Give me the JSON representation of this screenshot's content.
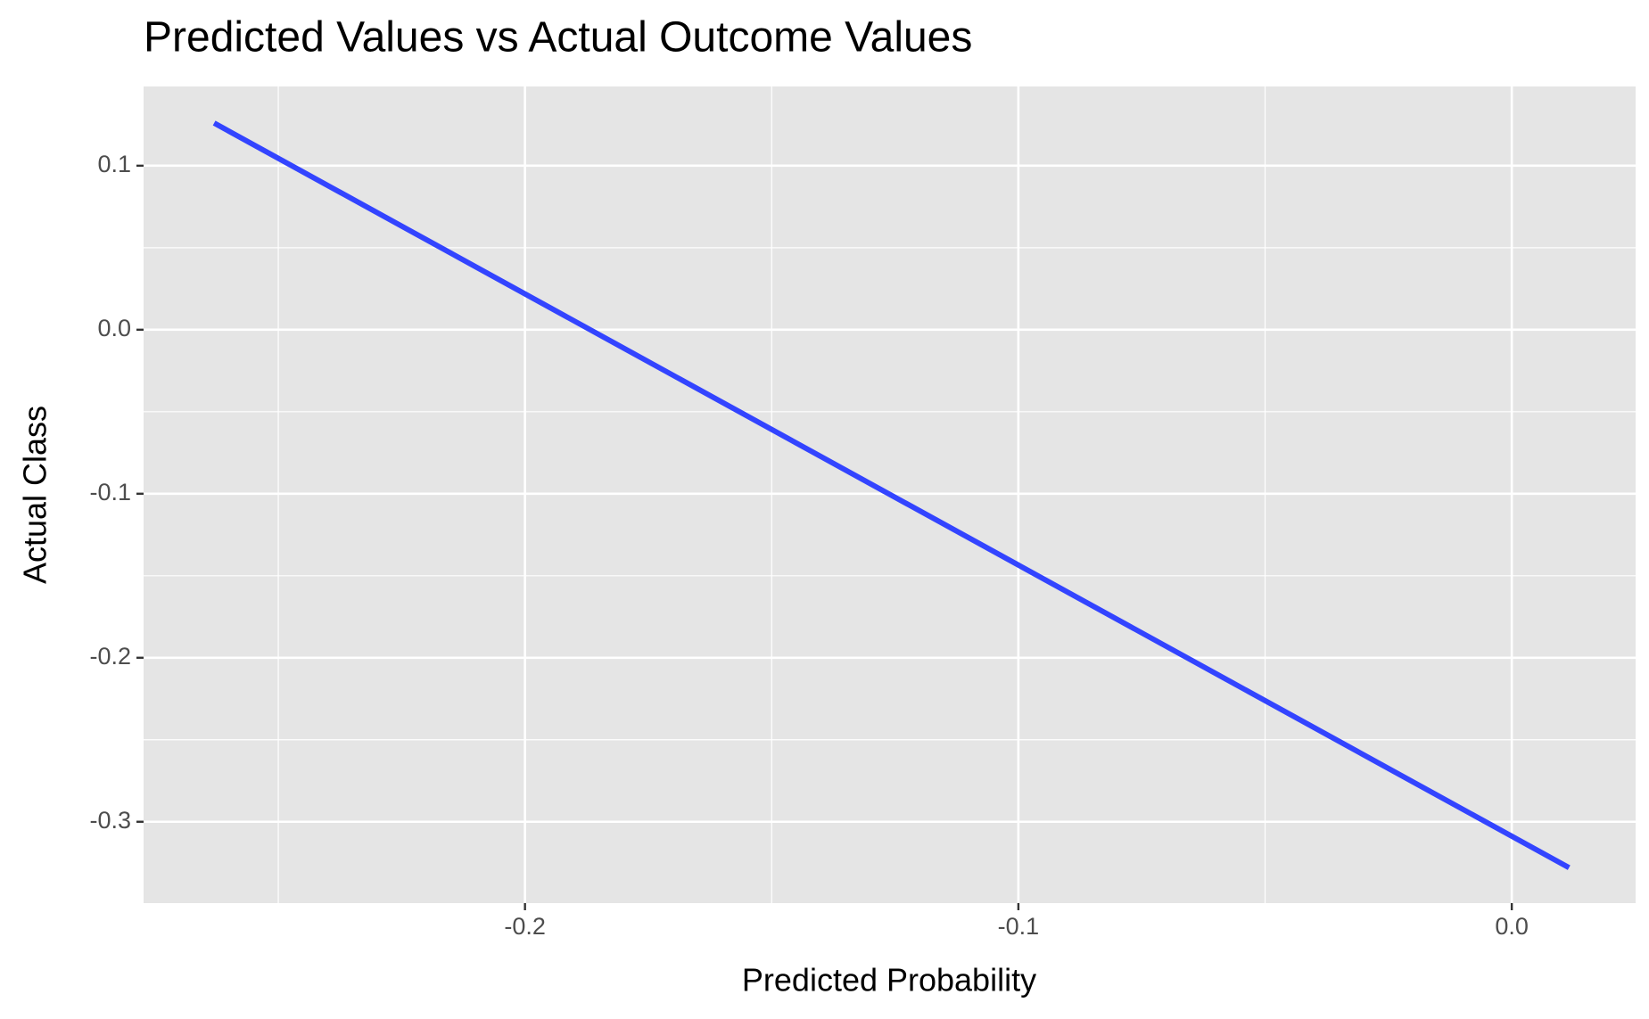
{
  "chart_data": {
    "type": "line",
    "title": "Predicted Values vs Actual Outcome Values",
    "x_label": "Predicted Probability",
    "y_label": "Actual Class",
    "x": [
      -0.263,
      0.0116
    ],
    "series": [
      {
        "color": "#3344ff",
        "values": [
          0.126,
          -0.328
        ]
      }
    ],
    "xlim": [
      -0.2773,
      0.0251
    ],
    "ylim": [
      -0.3496,
      0.1483
    ],
    "xticks": [
      -0.2,
      -0.1,
      {
        "value": 0,
        "label": "0.0"
      }
    ],
    "yticks": [
      0.1,
      {
        "value": 0,
        "label": "0.0"
      },
      -0.1,
      -0.2,
      -0.3
    ],
    "grid": true
  }
}
